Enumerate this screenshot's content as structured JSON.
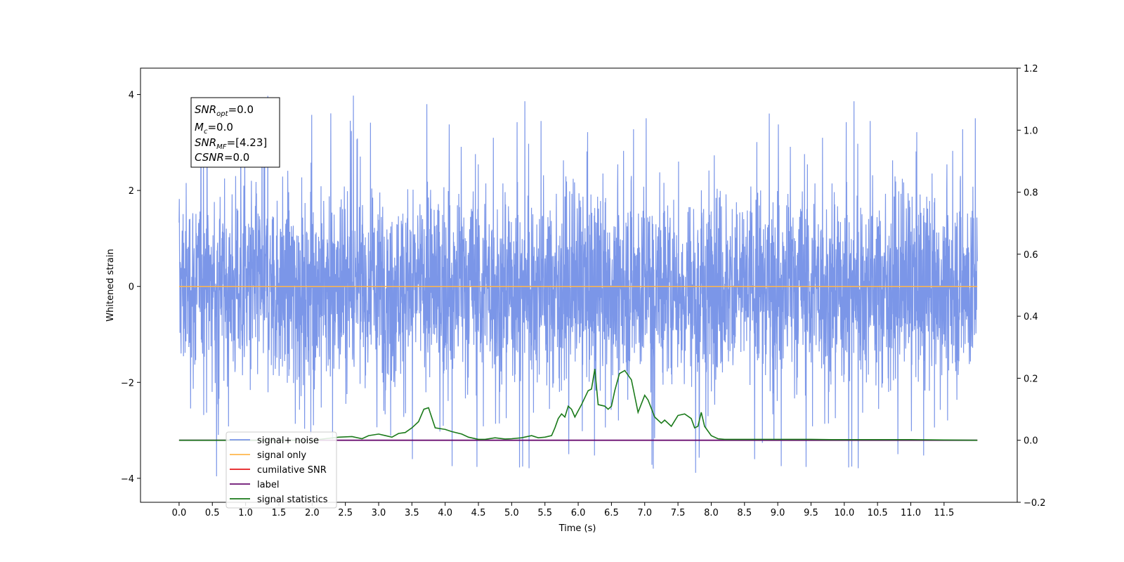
{
  "chart_data": {
    "type": "line",
    "xlabel": "Time (s)",
    "ylabel": "Whitened strain",
    "xlim": [
      -0.58,
      12.6
    ],
    "ylim": [
      -4.5,
      4.55
    ],
    "y2lim": [
      -0.2,
      1.2
    ],
    "x_ticks": [
      0.0,
      0.5,
      1.0,
      1.5,
      2.0,
      2.5,
      3.0,
      3.5,
      4.0,
      4.5,
      5.0,
      5.5,
      6.0,
      6.5,
      7.0,
      7.5,
      8.0,
      8.5,
      9.0,
      9.5,
      10.0,
      10.5,
      11.0,
      11.5
    ],
    "x_tick_labels": [
      "0.0",
      "0.5",
      "1.0",
      "1.5",
      "2.0",
      "2.5",
      "3.0",
      "3.5",
      "4.0",
      "4.5",
      "5.0",
      "5.5",
      "6.0",
      "6.5",
      "7.0",
      "7.5",
      "8.0",
      "8.5",
      "9.0",
      "9.5",
      "10.0",
      "10.5",
      "11.0",
      "11.5"
    ],
    "y_ticks": [
      4,
      2,
      0,
      -2,
      -4
    ],
    "y_tick_labels": [
      "4",
      "2",
      "0",
      "−2",
      "−4"
    ],
    "y2_ticks": [
      1.2,
      1.0,
      0.8,
      0.6,
      0.4,
      0.2,
      0.0,
      -0.2
    ],
    "y2_tick_labels": [
      "1.2",
      "1.0",
      "0.8",
      "0.6",
      "0.4",
      "0.2",
      "0.0",
      "−0.2"
    ],
    "grid": false,
    "legend_position": "lower-left",
    "annotation": {
      "lines": [
        {
          "base": "SNR",
          "sub": "opt",
          "rest": "=0.0"
        },
        {
          "base": "M",
          "sub": "c",
          "rest": "=0.0"
        },
        {
          "base": "SNR",
          "sub": "MF",
          "rest": "=[4.23]"
        },
        {
          "base": "CSNR",
          "sub": "",
          "rest": "=0.0"
        }
      ]
    },
    "series": [
      {
        "name": "signal+ noise",
        "color": "#7b96e8",
        "axis": "left",
        "x_range": [
          0.0,
          12.0
        ],
        "noise_std": 1.0,
        "peak_max": 4.1,
        "peak_min": -4.1
      },
      {
        "name": "signal only",
        "color": "#ffb74d",
        "axis": "left",
        "x": [
          0.0,
          12.0
        ],
        "values": [
          0.0,
          0.0
        ]
      },
      {
        "name": "cumilative SNR",
        "color": "#e41a1c",
        "axis": "right",
        "x": [
          0.0,
          12.0
        ],
        "values": [
          0.0,
          0.0
        ]
      },
      {
        "name": "label",
        "color": "#6a0f70",
        "axis": "right",
        "x": [
          0.0,
          12.0
        ],
        "values": [
          0.0,
          0.0
        ]
      },
      {
        "name": "signal statistics",
        "color": "#1a7a1a",
        "axis": "right",
        "x": [
          0.0,
          0.5,
          1.0,
          1.5,
          2.0,
          2.2,
          2.4,
          2.6,
          2.75,
          2.85,
          3.0,
          3.1,
          3.2,
          3.3,
          3.4,
          3.5,
          3.6,
          3.68,
          3.75,
          3.85,
          4.0,
          4.1,
          4.25,
          4.35,
          4.5,
          4.6,
          4.75,
          4.9,
          5.0,
          5.15,
          5.3,
          5.4,
          5.5,
          5.6,
          5.65,
          5.7,
          5.75,
          5.8,
          5.85,
          5.9,
          5.95,
          6.0,
          6.05,
          6.15,
          6.2,
          6.25,
          6.3,
          6.4,
          6.45,
          6.5,
          6.55,
          6.62,
          6.7,
          6.8,
          6.9,
          7.0,
          7.05,
          7.15,
          7.25,
          7.3,
          7.4,
          7.5,
          7.6,
          7.7,
          7.75,
          7.8,
          7.85,
          7.9,
          8.0,
          8.1,
          8.2,
          8.5,
          9.0,
          9.3,
          9.5,
          9.8,
          10.0,
          10.5,
          11.0,
          11.5,
          12.0
        ],
        "values": [
          0.0,
          0.0,
          0.0,
          0.0,
          0.0,
          0.005,
          0.01,
          0.012,
          0.005,
          0.015,
          0.02,
          0.015,
          0.01,
          0.022,
          0.025,
          0.04,
          0.06,
          0.1,
          0.105,
          0.04,
          0.035,
          0.028,
          0.02,
          0.01,
          0.003,
          0.003,
          0.008,
          0.004,
          0.005,
          0.008,
          0.015,
          0.008,
          0.01,
          0.015,
          0.04,
          0.07,
          0.085,
          0.075,
          0.11,
          0.1,
          0.075,
          0.095,
          0.115,
          0.16,
          0.165,
          0.23,
          0.115,
          0.11,
          0.1,
          0.11,
          0.16,
          0.215,
          0.225,
          0.195,
          0.09,
          0.145,
          0.13,
          0.075,
          0.055,
          0.065,
          0.045,
          0.08,
          0.085,
          0.07,
          0.04,
          0.045,
          0.09,
          0.045,
          0.015,
          0.005,
          0.003,
          0.003,
          0.003,
          0.003,
          0.003,
          0.002,
          0.002,
          0.002,
          0.002,
          0.001,
          0.0
        ]
      }
    ]
  }
}
